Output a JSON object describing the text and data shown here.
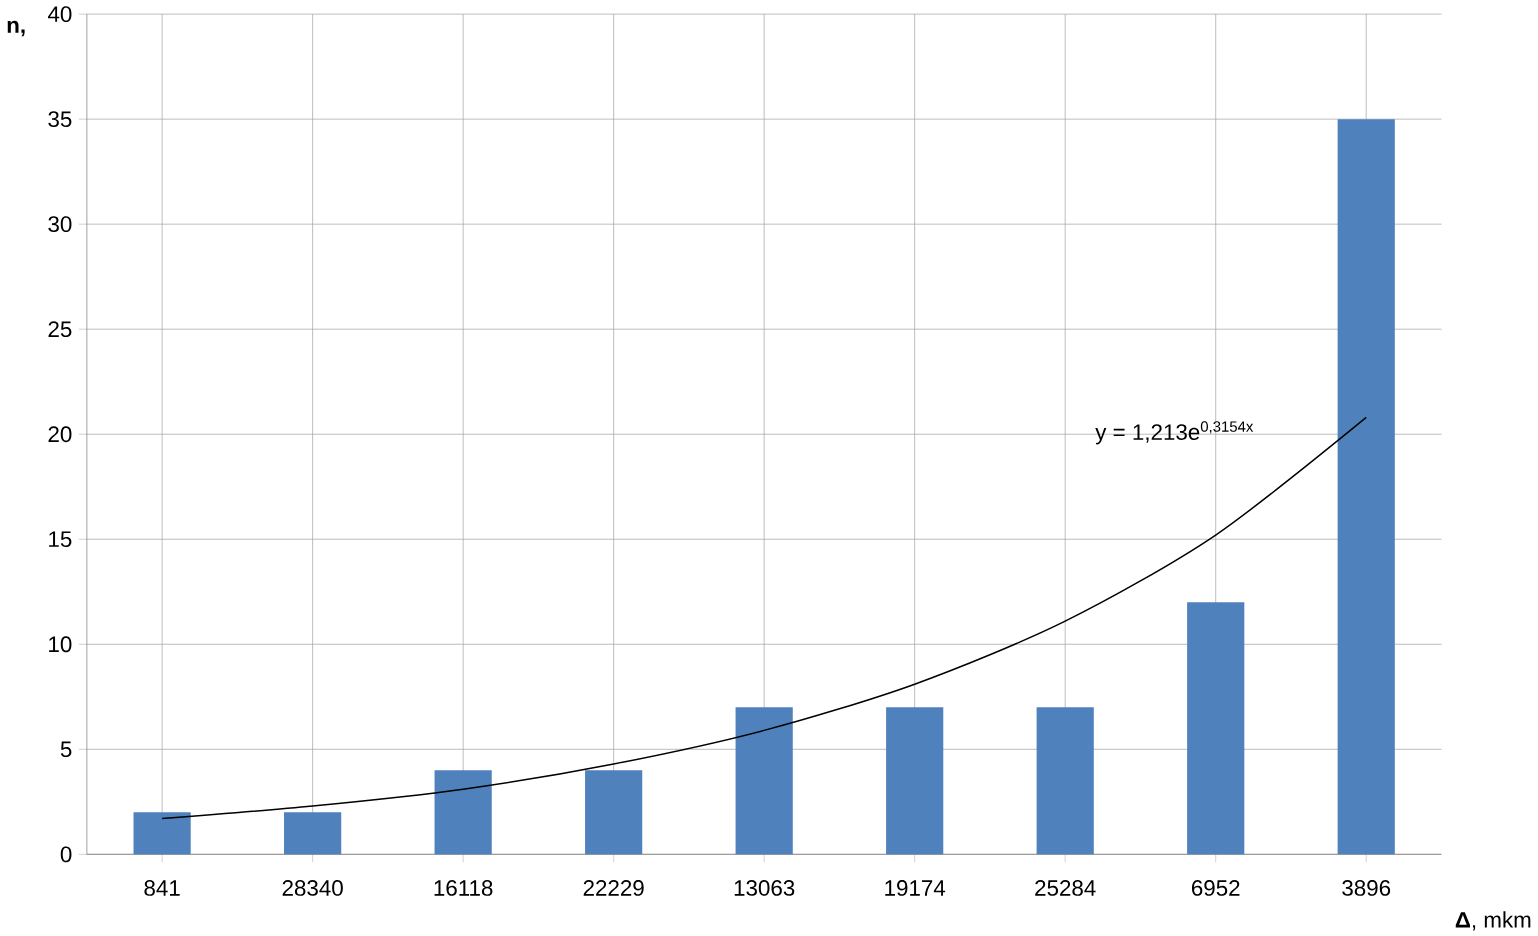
{
  "chart_data": {
    "type": "bar",
    "ylabel": "n,",
    "xlabel": "**Δ**, mkm",
    "categories": [
      "841",
      "28340",
      "16118",
      "22229",
      "13063",
      "19174",
      "25284",
      "6952",
      "3896"
    ],
    "series": [
      {
        "color": "#4f81bd",
        "values": [
          2,
          2,
          4,
          4,
          7,
          7,
          7,
          12,
          35
        ]
      },
      {
        "type": "line",
        "color": "#000000",
        "values": [
          1.7,
          2.3,
          3.1,
          4.3,
          5.9,
          8.1,
          11.1,
          15.2,
          20.8
        ]
      }
    ],
    "annotations": [
      "y = 1,213e$^{0,3154x}$"
    ],
    "ylim": [
      0,
      40
    ],
    "yticks": [
      0,
      5,
      10,
      15,
      20,
      25,
      30,
      35,
      40
    ],
    "grid": true
  }
}
